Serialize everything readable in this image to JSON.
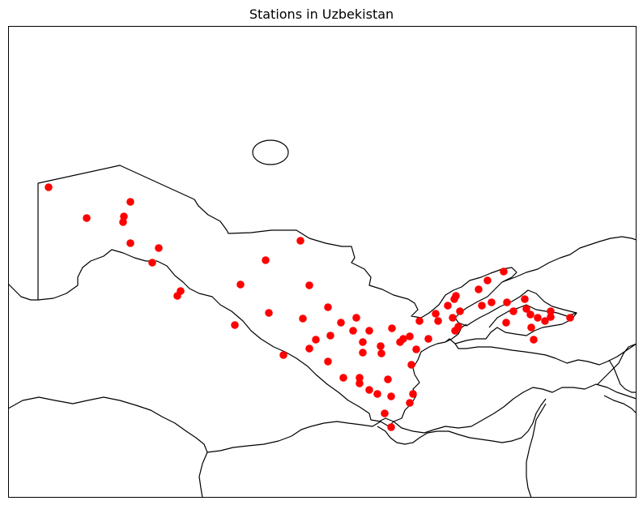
{
  "title": "Stations in Uzbekistan",
  "colors": {
    "marker": "#ff0000",
    "border": "#000000",
    "background": "#ffffff"
  },
  "marker_shape": "circle",
  "station_count": 77
}
